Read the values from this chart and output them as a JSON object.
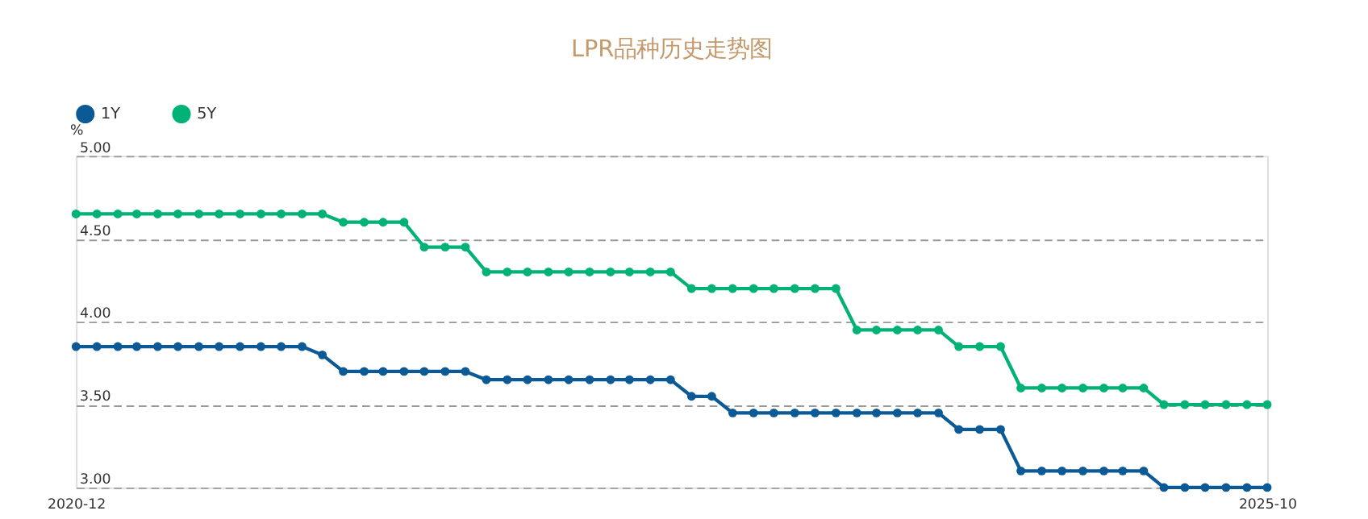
{
  "chart_data": {
    "type": "line",
    "title": "LPR品种历史走势图",
    "ylabel": "%",
    "x": [
      "2020-12",
      "2021-01",
      "2021-02",
      "2021-03",
      "2021-04",
      "2021-05",
      "2021-06",
      "2021-07",
      "2021-08",
      "2021-09",
      "2021-10",
      "2021-11",
      "2021-12",
      "2022-01",
      "2022-02",
      "2022-03",
      "2022-04",
      "2022-05",
      "2022-06",
      "2022-07",
      "2022-08",
      "2022-09",
      "2022-10",
      "2022-11",
      "2022-12",
      "2023-01",
      "2023-02",
      "2023-03",
      "2023-04",
      "2023-05",
      "2023-06",
      "2023-07",
      "2023-08",
      "2023-09",
      "2023-10",
      "2023-11",
      "2023-12",
      "2024-01",
      "2024-02",
      "2024-03",
      "2024-04",
      "2024-05",
      "2024-06",
      "2024-07",
      "2024-08",
      "2024-09",
      "2024-10",
      "2024-11",
      "2024-12",
      "2025-01",
      "2025-02",
      "2025-03",
      "2025-04",
      "2025-05",
      "2025-06",
      "2025-07",
      "2025-08",
      "2025-09",
      "2025-10"
    ],
    "series": [
      {
        "name": "1Y",
        "color": "#0b5a96",
        "values": [
          3.85,
          3.85,
          3.85,
          3.85,
          3.85,
          3.85,
          3.85,
          3.85,
          3.85,
          3.85,
          3.85,
          3.85,
          3.8,
          3.7,
          3.7,
          3.7,
          3.7,
          3.7,
          3.7,
          3.7,
          3.65,
          3.65,
          3.65,
          3.65,
          3.65,
          3.65,
          3.65,
          3.65,
          3.65,
          3.65,
          3.55,
          3.55,
          3.45,
          3.45,
          3.45,
          3.45,
          3.45,
          3.45,
          3.45,
          3.45,
          3.45,
          3.45,
          3.45,
          3.35,
          3.35,
          3.35,
          3.1,
          3.1,
          3.1,
          3.1,
          3.1,
          3.1,
          3.1,
          3.0,
          3.0,
          3.0,
          3.0,
          3.0,
          3.0
        ]
      },
      {
        "name": "5Y",
        "color": "#00b276",
        "values": [
          4.65,
          4.65,
          4.65,
          4.65,
          4.65,
          4.65,
          4.65,
          4.65,
          4.65,
          4.65,
          4.65,
          4.65,
          4.65,
          4.6,
          4.6,
          4.6,
          4.6,
          4.45,
          4.45,
          4.45,
          4.3,
          4.3,
          4.3,
          4.3,
          4.3,
          4.3,
          4.3,
          4.3,
          4.3,
          4.3,
          4.2,
          4.2,
          4.2,
          4.2,
          4.2,
          4.2,
          4.2,
          4.2,
          3.95,
          3.95,
          3.95,
          3.95,
          3.95,
          3.85,
          3.85,
          3.85,
          3.6,
          3.6,
          3.6,
          3.6,
          3.6,
          3.6,
          3.6,
          3.5,
          3.5,
          3.5,
          3.5,
          3.5,
          3.5
        ]
      }
    ],
    "xlim": [
      "2020-12",
      "2025-10"
    ],
    "xticks": [
      "2020-12",
      "2025-10"
    ],
    "ylim": [
      3.0,
      5.0
    ],
    "yticks": [
      {
        "value": 3.0,
        "label": "3.00"
      },
      {
        "value": 3.5,
        "label": "3.50"
      },
      {
        "value": 4.0,
        "label": "4.00"
      },
      {
        "value": 4.5,
        "label": "4.50"
      },
      {
        "value": 5.0,
        "label": "5.00"
      }
    ],
    "grid": "y",
    "legend": "top",
    "marker": "circle",
    "line_style": "solid"
  }
}
